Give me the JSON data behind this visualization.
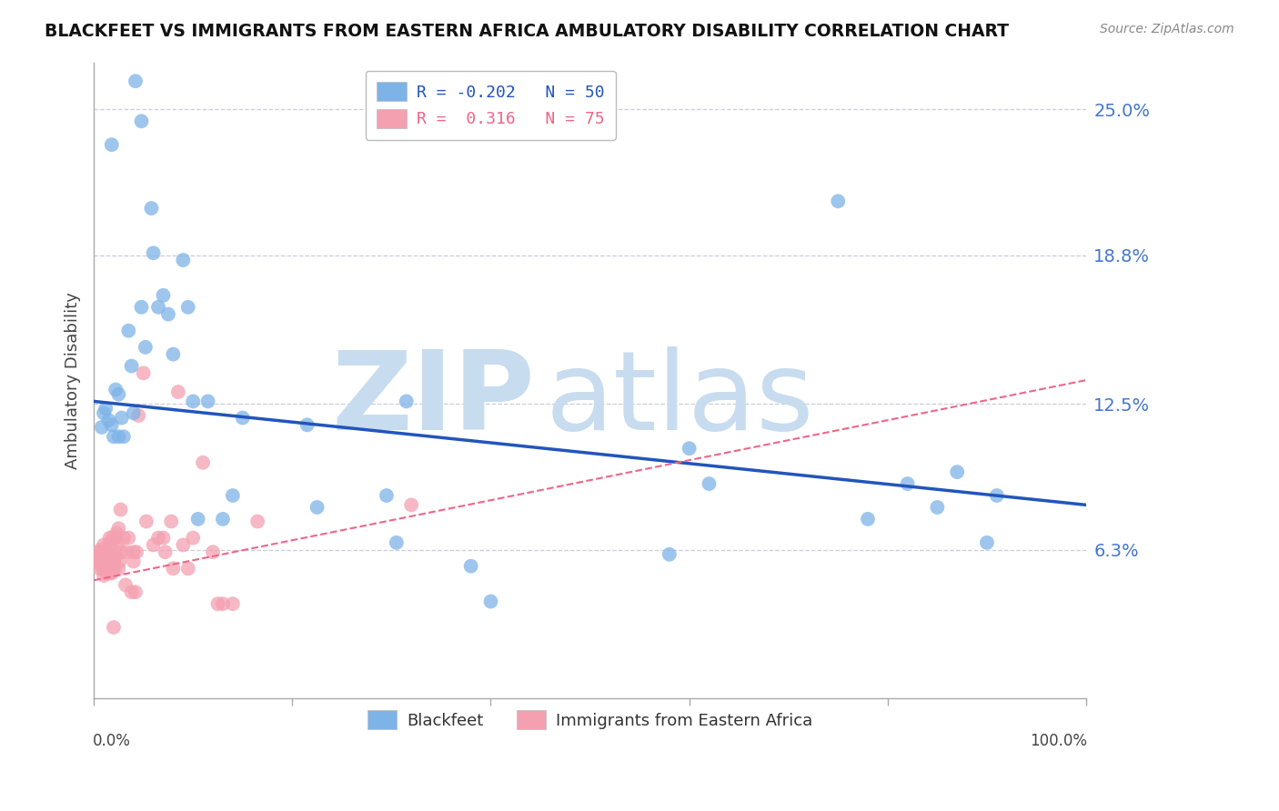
{
  "title": "BLACKFEET VS IMMIGRANTS FROM EASTERN AFRICA AMBULATORY DISABILITY CORRELATION CHART",
  "source": "Source: ZipAtlas.com",
  "ylabel": "Ambulatory Disability",
  "ytick_labels": [
    "6.3%",
    "12.5%",
    "18.8%",
    "25.0%"
  ],
  "ytick_values": [
    0.063,
    0.125,
    0.188,
    0.25
  ],
  "legend_r1": "R = -0.202",
  "legend_n1": "N = 50",
  "legend_r2": "R =  0.316",
  "legend_n2": "N = 75",
  "blue_color": "#7EB3E8",
  "pink_color": "#F4A0B0",
  "line_blue_color": "#2255BB",
  "line_pink_color": "#EE6688",
  "background_color": "#FFFFFF",
  "grid_color": "#CCCCDD",
  "watermark_zip": "ZIP",
  "watermark_atlas": "atlas",
  "watermark_color_zip": "#C8DCF0",
  "watermark_color_atlas": "#C8DCF0",
  "blue_scatter_x": [
    0.018,
    0.042,
    0.048,
    0.058,
    0.008,
    0.01,
    0.012,
    0.015,
    0.018,
    0.022,
    0.025,
    0.028,
    0.03,
    0.035,
    0.038,
    0.04,
    0.048,
    0.052,
    0.065,
    0.07,
    0.075,
    0.08,
    0.09,
    0.095,
    0.1,
    0.105,
    0.115,
    0.13,
    0.14,
    0.215,
    0.225,
    0.295,
    0.305,
    0.315,
    0.38,
    0.4,
    0.58,
    0.6,
    0.62,
    0.75,
    0.78,
    0.82,
    0.85,
    0.87,
    0.9,
    0.91,
    0.02,
    0.025,
    0.06,
    0.15
  ],
  "blue_scatter_y": [
    0.235,
    0.262,
    0.245,
    0.208,
    0.115,
    0.121,
    0.123,
    0.118,
    0.116,
    0.131,
    0.129,
    0.119,
    0.111,
    0.156,
    0.141,
    0.121,
    0.166,
    0.149,
    0.166,
    0.171,
    0.163,
    0.146,
    0.186,
    0.166,
    0.126,
    0.076,
    0.126,
    0.076,
    0.086,
    0.116,
    0.081,
    0.086,
    0.066,
    0.126,
    0.056,
    0.041,
    0.061,
    0.106,
    0.091,
    0.211,
    0.076,
    0.091,
    0.081,
    0.096,
    0.066,
    0.086,
    0.111,
    0.111,
    0.189,
    0.119
  ],
  "pink_scatter_x": [
    0.003,
    0.004,
    0.005,
    0.005,
    0.006,
    0.006,
    0.007,
    0.007,
    0.008,
    0.009,
    0.009,
    0.01,
    0.01,
    0.01,
    0.011,
    0.011,
    0.012,
    0.012,
    0.013,
    0.013,
    0.014,
    0.014,
    0.015,
    0.015,
    0.015,
    0.016,
    0.016,
    0.017,
    0.017,
    0.018,
    0.018,
    0.019,
    0.019,
    0.02,
    0.02,
    0.02,
    0.021,
    0.022,
    0.022,
    0.023,
    0.024,
    0.025,
    0.025,
    0.026,
    0.027,
    0.028,
    0.03,
    0.032,
    0.033,
    0.035,
    0.038,
    0.04,
    0.04,
    0.042,
    0.043,
    0.045,
    0.05,
    0.053,
    0.06,
    0.065,
    0.07,
    0.072,
    0.078,
    0.08,
    0.085,
    0.09,
    0.095,
    0.1,
    0.11,
    0.12,
    0.125,
    0.13,
    0.14,
    0.165,
    0.32
  ],
  "pink_scatter_y": [
    0.06,
    0.058,
    0.062,
    0.058,
    0.055,
    0.06,
    0.058,
    0.063,
    0.058,
    0.06,
    0.055,
    0.052,
    0.065,
    0.058,
    0.062,
    0.055,
    0.06,
    0.058,
    0.053,
    0.056,
    0.054,
    0.06,
    0.057,
    0.053,
    0.065,
    0.068,
    0.055,
    0.06,
    0.057,
    0.053,
    0.065,
    0.068,
    0.055,
    0.06,
    0.03,
    0.058,
    0.055,
    0.06,
    0.068,
    0.07,
    0.065,
    0.072,
    0.055,
    0.058,
    0.08,
    0.062,
    0.068,
    0.048,
    0.062,
    0.068,
    0.045,
    0.062,
    0.058,
    0.045,
    0.062,
    0.12,
    0.138,
    0.075,
    0.065,
    0.068,
    0.068,
    0.062,
    0.075,
    0.055,
    0.13,
    0.065,
    0.055,
    0.068,
    0.1,
    0.062,
    0.04,
    0.04,
    0.04,
    0.075,
    0.082
  ],
  "xlim": [
    0.0,
    1.0
  ],
  "ylim": [
    0.0,
    0.27
  ],
  "blue_line_x0": 0.0,
  "blue_line_x1": 1.0,
  "blue_line_y0": 0.126,
  "blue_line_y1": 0.082,
  "pink_line_x0": 0.0,
  "pink_line_x1": 1.0,
  "pink_line_y0": 0.05,
  "pink_line_y1": 0.135
}
